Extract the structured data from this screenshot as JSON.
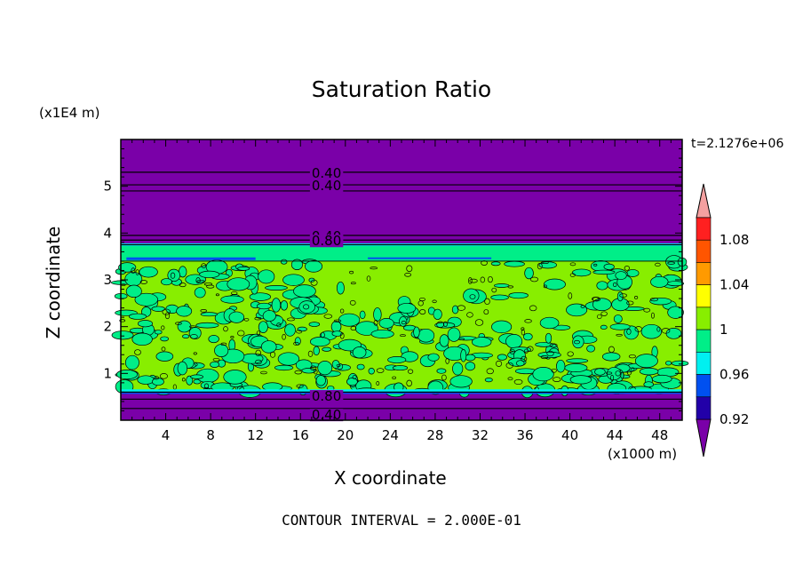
{
  "chart_data": {
    "type": "heatmap",
    "title": "Saturation Ratio",
    "xlabel": "X coordinate",
    "ylabel": "Z coordinate",
    "x_unit": "(x1000 m)",
    "y_unit": "(x1E4 m)",
    "time_label": "t=2.1276e+06",
    "footer": "CONTOUR INTERVAL = 2.000E-01",
    "xlim": [
      0,
      50
    ],
    "ylim": [
      0,
      6
    ],
    "x_ticks": [
      "4",
      "8",
      "12",
      "16",
      "20",
      "24",
      "28",
      "32",
      "36",
      "40",
      "44",
      "48"
    ],
    "y_ticks": [
      "1",
      "2",
      "3",
      "4",
      "5"
    ],
    "contour_labels": [
      "0.40",
      "0.40",
      "0.40",
      "0.80",
      "0.80",
      "0.40"
    ],
    "colorbar": {
      "levels": [
        0.92,
        0.96,
        1.0,
        1.04,
        1.08
      ],
      "tick_labels": [
        "0.92",
        "0.96",
        "1",
        "1.04",
        "1.08"
      ],
      "colors": [
        "#7a00a8",
        "#2200a8",
        "#0050f0",
        "#00f0f0",
        "#00ee88",
        "#88ee00",
        "#ffff00",
        "#ff9a00",
        "#ff5500",
        "#ff2020",
        "#f4a0a0"
      ]
    },
    "bands": [
      {
        "z_range": [
          3.75,
          6.0
        ],
        "level": "< 0.92",
        "color": "#7a00a8"
      },
      {
        "z_range": [
          3.4,
          3.75
        ],
        "level": "0.96-1.00",
        "color": "#00ee88"
      },
      {
        "z_range": [
          0.6,
          3.4
        ],
        "level": "0.96-1.04 mixed",
        "color": "#88ee00"
      },
      {
        "z_range": [
          0.0,
          0.6
        ],
        "level": "< 0.92",
        "color": "#7a00a8"
      }
    ],
    "grid": false,
    "legend_position": "right"
  }
}
